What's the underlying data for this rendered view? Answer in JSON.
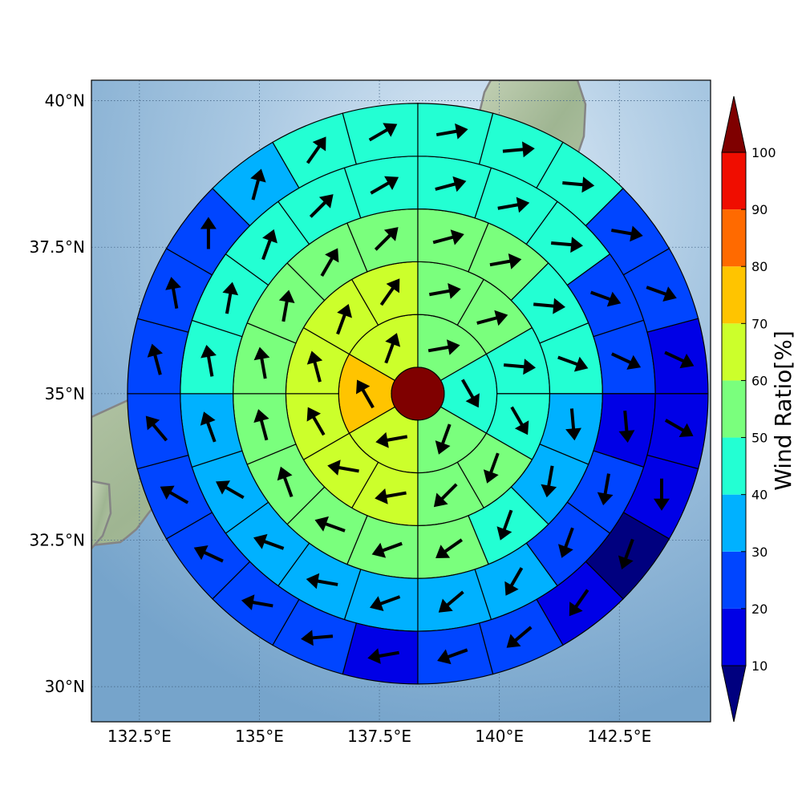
{
  "chart_data": {
    "type": "polar-grid wind map",
    "title": "",
    "map": {
      "lon_range": [
        131.5,
        144.4
      ],
      "lat_range": [
        29.4,
        40.35
      ],
      "land_color": "#a3b896",
      "sea_color_light": "#d6e6f3",
      "sea_color_dark": "#79a7cc",
      "coast_color": "#808080",
      "gridlines": true,
      "grid_style": "dotted"
    },
    "x_ticks": [
      {
        "value": 132.5,
        "label": "132.5°E"
      },
      {
        "value": 135.0,
        "label": "135°E"
      },
      {
        "value": 137.5,
        "label": "137.5°E"
      },
      {
        "value": 140.0,
        "label": "140°E"
      },
      {
        "value": 142.5,
        "label": "142.5°E"
      }
    ],
    "y_ticks": [
      {
        "value": 30.0,
        "label": "30°N"
      },
      {
        "value": 32.5,
        "label": "32.5°N"
      },
      {
        "value": 35.0,
        "label": "35°N"
      },
      {
        "value": 37.5,
        "label": "37.5°N"
      },
      {
        "value": 40.0,
        "label": "40°N"
      }
    ],
    "center": {
      "lon": 138.3,
      "lat": 35.0
    },
    "center_value": 101,
    "ring_radii_km": [
      50,
      150,
      250,
      350,
      450,
      550
    ],
    "sectors_per_ring": [
      6,
      12,
      16,
      20,
      24
    ],
    "rings": [
      {
        "values": [
          55,
          45,
          55,
          65,
          75,
          60
        ],
        "wind_deg": [
          80,
          150,
          200,
          260,
          330,
          20
        ]
      },
      {
        "values": [
          55,
          50,
          45,
          45,
          50,
          55,
          65,
          65,
          65,
          65,
          65,
          65
        ],
        "wind_deg": [
          80,
          75,
          95,
          150,
          200,
          225,
          260,
          280,
          330,
          345,
          20,
          35
        ]
      },
      {
        "values": [
          55,
          50,
          45,
          40,
          35,
          35,
          40,
          50,
          55,
          55,
          50,
          55,
          55,
          55,
          55,
          55
        ],
        "wind_deg": [
          75,
          80,
          95,
          110,
          175,
          190,
          200,
          235,
          250,
          290,
          340,
          345,
          350,
          10,
          30,
          45
        ]
      },
      {
        "values": [
          45,
          45,
          45,
          25,
          25,
          15,
          25,
          25,
          35,
          35,
          35,
          35,
          35,
          35,
          35,
          45,
          45,
          45,
          45,
          45
        ],
        "wind_deg": [
          75,
          80,
          95,
          110,
          115,
          175,
          190,
          200,
          210,
          230,
          250,
          280,
          290,
          300,
          340,
          350,
          10,
          20,
          45,
          60
        ]
      },
      {
        "values": [
          45,
          45,
          45,
          25,
          25,
          15,
          15,
          15,
          5,
          15,
          25,
          25,
          15,
          25,
          25,
          25,
          25,
          25,
          25,
          25,
          25,
          35,
          45,
          45
        ],
        "wind_deg": [
          80,
          85,
          95,
          100,
          110,
          115,
          120,
          180,
          200,
          215,
          230,
          250,
          260,
          265,
          280,
          295,
          300,
          320,
          345,
          350,
          0,
          15,
          35,
          60
        ]
      }
    ],
    "colorbar": {
      "label": "Wind Ratio[%]",
      "ticks": [
        10,
        20,
        30,
        40,
        50,
        60,
        70,
        80,
        90,
        100
      ],
      "bins": [
        {
          "from": 0,
          "to": 10,
          "color": "#00007f"
        },
        {
          "from": 10,
          "to": 20,
          "color": "#0000e6"
        },
        {
          "from": 20,
          "to": 30,
          "color": "#0045ff"
        },
        {
          "from": 30,
          "to": 40,
          "color": "#00b1ff"
        },
        {
          "from": 40,
          "to": 50,
          "color": "#23ffd3"
        },
        {
          "from": 50,
          "to": 60,
          "color": "#7aff7d"
        },
        {
          "from": 60,
          "to": 70,
          "color": "#ccff2b"
        },
        {
          "from": 70,
          "to": 80,
          "color": "#ffc400"
        },
        {
          "from": 80,
          "to": 90,
          "color": "#ff6a00"
        },
        {
          "from": 90,
          "to": 100,
          "color": "#f00d00"
        },
        {
          "from": 100,
          "to": 110,
          "color": "#7f0000"
        }
      ],
      "extend": "both"
    }
  }
}
